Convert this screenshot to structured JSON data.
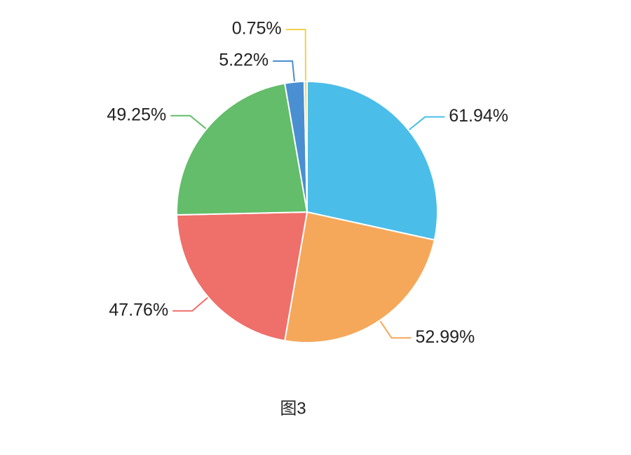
{
  "chart_data": {
    "type": "pie",
    "title": "图3",
    "values": [
      61.94,
      52.99,
      47.76,
      49.25,
      5.22,
      0.75
    ],
    "value_labels": [
      "61.94%",
      "52.99%",
      "47.76%",
      "49.25%",
      "5.22%",
      "0.75%"
    ],
    "colors": [
      "#4bbde9",
      "#f5a85a",
      "#ef6f6a",
      "#63bd6a",
      "#4a8fd1",
      "#f5d04e"
    ]
  }
}
